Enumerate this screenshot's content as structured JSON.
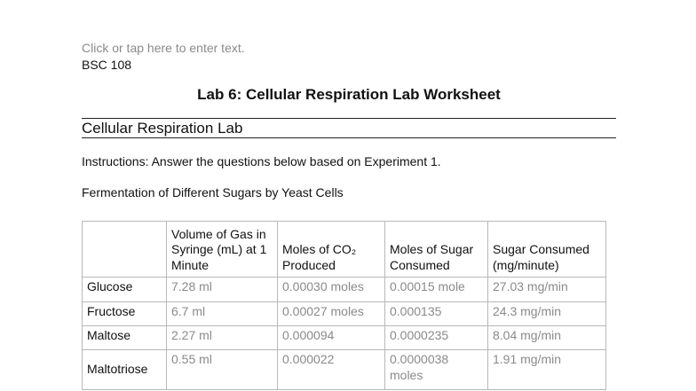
{
  "header": {
    "placeholder": "Click or tap here to enter text.",
    "course": "BSC 108"
  },
  "title": "Lab 6: Cellular Respiration Lab Worksheet",
  "section_heading": "Cellular Respiration Lab",
  "instructions": "Instructions: Answer the questions below based on Experiment 1.",
  "table_caption": "Fermentation of Different Sugars by Yeast Cells",
  "table": {
    "headers": [
      "",
      "Volume of Gas in Syringe (mL) at 1 Minute",
      "Moles of CO₂ Produced",
      "Moles of Sugar Consumed",
      "Sugar Consumed (mg/minute)"
    ],
    "rows": [
      [
        "Glucose",
        "7.28 ml",
        "0.00030 moles",
        "0.00015 mole",
        "27.03 mg/min"
      ],
      [
        "Fructose",
        "6.7 ml",
        "0.00027 moles",
        "0.000135",
        "24.3 mg/min"
      ],
      [
        "Maltose",
        "2.27 ml",
        "0.000094",
        "0.0000235",
        "8.04 mg/min"
      ],
      [
        "Maltotriose",
        "0.55 ml",
        "0.000022",
        "0.0000038 moles",
        "1.91 mg/min"
      ]
    ]
  }
}
